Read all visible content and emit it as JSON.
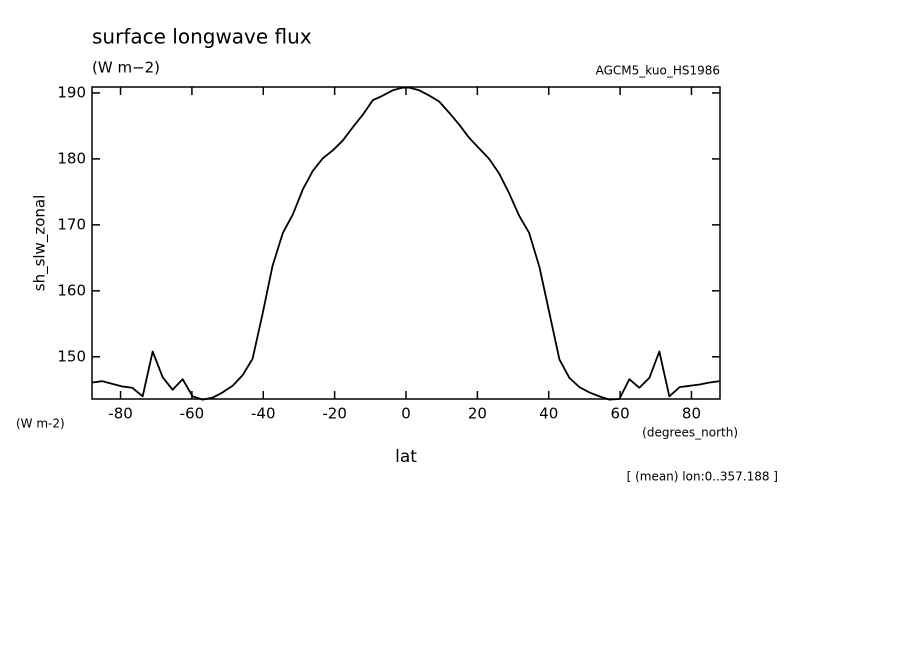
{
  "chart_data": {
    "type": "line",
    "title": "surface longwave flux",
    "subtitle": "(W m−2)",
    "source": "AGCM5_kuo_HS1986",
    "y_label": "sh_slw_zonal",
    "y_units": "(W m-2)",
    "x_units": "(degrees_north)",
    "x_label": "lat",
    "annotation": "[ (mean) lon:0..357.188 ]",
    "x": [
      -87.9,
      -85.1,
      -82.3,
      -79.5,
      -76.7,
      -73.8,
      -71.0,
      -68.2,
      -65.4,
      -62.6,
      -59.8,
      -57.0,
      -54.2,
      -51.4,
      -48.6,
      -45.8,
      -43.0,
      -40.2,
      -37.4,
      -34.5,
      -31.7,
      -28.9,
      -26.1,
      -23.3,
      -20.5,
      -17.7,
      -14.9,
      -12.1,
      -9.3,
      -6.5,
      -3.7,
      -0.9,
      0.9,
      3.7,
      6.5,
      9.3,
      12.1,
      14.9,
      17.7,
      20.5,
      23.3,
      26.1,
      28.9,
      31.7,
      34.5,
      37.4,
      40.2,
      43.0,
      45.8,
      48.6,
      51.4,
      54.2,
      57.0,
      59.8,
      62.6,
      65.4,
      68.2,
      71.0,
      73.8,
      76.7,
      79.5,
      82.3,
      85.1,
      87.9
    ],
    "series": [
      {
        "color": "#000000",
        "values": [
          146.1,
          146.3,
          145.9,
          145.5,
          145.3,
          144.0,
          150.8,
          146.9,
          145.0,
          146.6,
          144.0,
          143.5,
          143.8,
          144.6,
          145.6,
          147.2,
          149.7,
          156.5,
          163.8,
          168.8,
          171.6,
          175.4,
          178.2,
          180.1,
          181.3,
          182.8,
          184.8,
          186.7,
          188.9,
          189.6,
          190.4,
          190.8,
          190.8,
          190.4,
          189.6,
          188.7,
          187.0,
          185.2,
          183.2,
          181.6,
          180.0,
          177.8,
          174.8,
          171.4,
          168.8,
          163.6,
          156.6,
          149.6,
          146.8,
          145.4,
          144.6,
          144.0,
          143.5,
          143.6,
          146.6,
          145.3,
          146.8,
          150.8,
          144.0,
          145.4,
          145.6,
          145.8,
          146.1,
          146.3
        ]
      }
    ],
    "xlim": [
      -88,
      88
    ],
    "ylim": [
      143.6,
      190.9
    ],
    "xticks": [
      -80,
      -60,
      -40,
      -20,
      0,
      20,
      40,
      60,
      80
    ],
    "yticks": [
      150,
      160,
      170,
      180,
      190
    ]
  }
}
